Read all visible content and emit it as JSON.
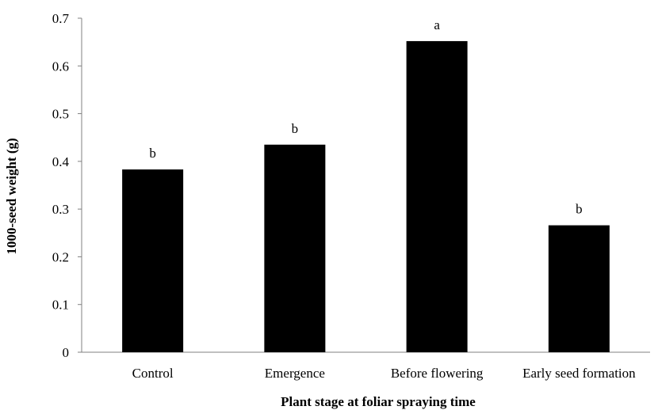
{
  "chart_data": {
    "type": "bar",
    "title": "",
    "xlabel": "Plant stage at foliar spraying time",
    "ylabel": "1000-seed weight (g)",
    "categories": [
      "Control",
      "Emergence",
      "Before flowering",
      "Early seed formation"
    ],
    "values": [
      0.383,
      0.435,
      0.652,
      0.266
    ],
    "bar_labels": [
      "b",
      "b",
      "a",
      "b"
    ],
    "ylim": [
      0,
      0.7
    ],
    "yticks": [
      "0",
      "0.1",
      "0.2",
      "0.3",
      "0.4",
      "0.5",
      "0.6",
      "0.7"
    ],
    "grid": false,
    "legend": "none",
    "bar_color": "#000000"
  }
}
